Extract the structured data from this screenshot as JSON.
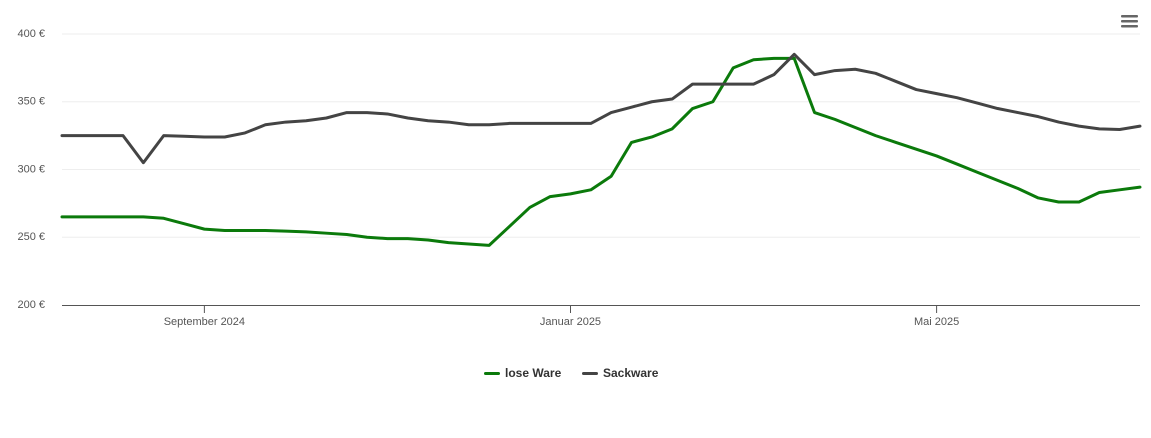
{
  "chart_data": {
    "type": "line",
    "categories": [
      null,
      null,
      null,
      null,
      null,
      null,
      null,
      "September 2024",
      null,
      null,
      null,
      null,
      null,
      null,
      null,
      null,
      null,
      null,
      null,
      null,
      null,
      null,
      null,
      null,
      null,
      "Januar 2025",
      null,
      null,
      null,
      null,
      null,
      null,
      null,
      null,
      null,
      null,
      null,
      null,
      null,
      null,
      null,
      null,
      null,
      "Mai 2025",
      null,
      null,
      null,
      null,
      null,
      null,
      null,
      null,
      null,
      null
    ],
    "series": [
      {
        "name": "lose Ware",
        "color": "#0b7a0b",
        "values": [
          265,
          265,
          265,
          265,
          265,
          264,
          260,
          256,
          255,
          255,
          255,
          254.5,
          254,
          253,
          252,
          250,
          249,
          249,
          248,
          246,
          245,
          244,
          258,
          272,
          280,
          282,
          285,
          295,
          320,
          324,
          330,
          345,
          350,
          375,
          381,
          382,
          382,
          342,
          337,
          331,
          325,
          320,
          315,
          310,
          304,
          298,
          292,
          286,
          279,
          276,
          276,
          283,
          285,
          287
        ]
      },
      {
        "name": "Sackware",
        "color": "#444444",
        "values": [
          325,
          325,
          325,
          325,
          305,
          325,
          324.5,
          324,
          324,
          327,
          333,
          335,
          336,
          338,
          342,
          342,
          341,
          338,
          336,
          335,
          333,
          333,
          334,
          334,
          334,
          334,
          334,
          342,
          346,
          350,
          352,
          363,
          363,
          363,
          363,
          370,
          385,
          370,
          373,
          374,
          371,
          365,
          359,
          356,
          353,
          349,
          345,
          342,
          339,
          335,
          332,
          330,
          329.5,
          332
        ]
      }
    ],
    "ylim": [
      200,
      400
    ],
    "yticks": [
      {
        "value": 200,
        "label": "200 €"
      },
      {
        "value": 250,
        "label": "250 €"
      },
      {
        "value": 300,
        "label": "300 €"
      },
      {
        "value": 350,
        "label": "350 €"
      },
      {
        "value": 400,
        "label": "400 €"
      }
    ],
    "grid": true,
    "legend": "bottom"
  }
}
